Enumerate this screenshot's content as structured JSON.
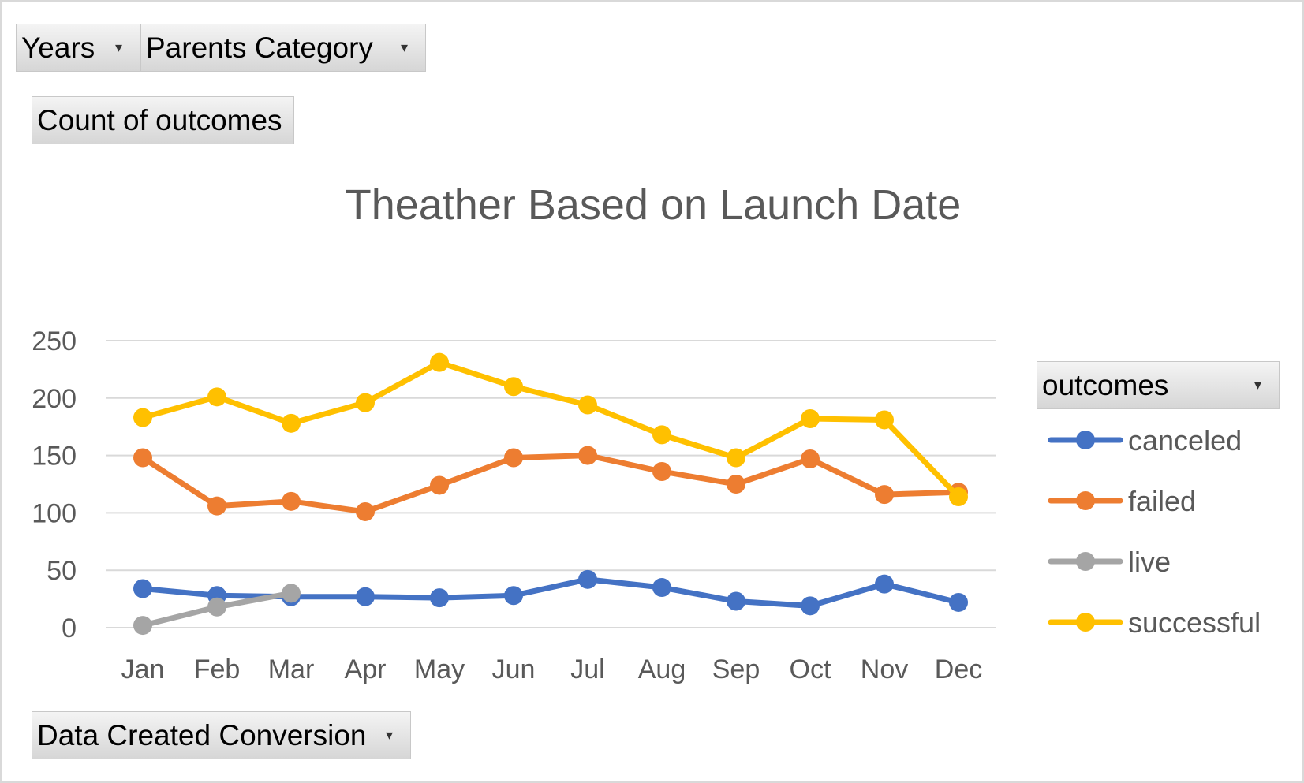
{
  "filters": {
    "years": "Years",
    "parents_category": "Parents Category",
    "values_field": "Count of outcomes",
    "axis_field": "Data Created Conversion",
    "legend_field": "outcomes"
  },
  "chart_data": {
    "type": "line",
    "title": "Theather Based on Launch Date",
    "xlabel": "",
    "ylabel": "",
    "categories": [
      "Jan",
      "Feb",
      "Mar",
      "Apr",
      "May",
      "Jun",
      "Jul",
      "Aug",
      "Sep",
      "Oct",
      "Nov",
      "Dec"
    ],
    "ylim": [
      0,
      250
    ],
    "yticks": [
      "0",
      "50",
      "100",
      "150",
      "200",
      "250"
    ],
    "grid": true,
    "legend_position": "right",
    "series": [
      {
        "name": "canceled",
        "color": "#4472c4",
        "values": [
          34,
          28,
          27,
          27,
          26,
          28,
          42,
          35,
          23,
          19,
          38,
          22
        ]
      },
      {
        "name": "failed",
        "color": "#ed7d31",
        "values": [
          148,
          106,
          110,
          101,
          124,
          148,
          150,
          136,
          125,
          147,
          116,
          118
        ]
      },
      {
        "name": "live",
        "color": "#a5a5a5",
        "values": [
          2,
          18,
          30,
          null,
          null,
          null,
          null,
          null,
          null,
          null,
          null,
          null
        ]
      },
      {
        "name": "successful",
        "color": "#ffc000",
        "values": [
          183,
          201,
          178,
          196,
          231,
          210,
          194,
          168,
          148,
          182,
          181,
          114
        ]
      }
    ]
  }
}
